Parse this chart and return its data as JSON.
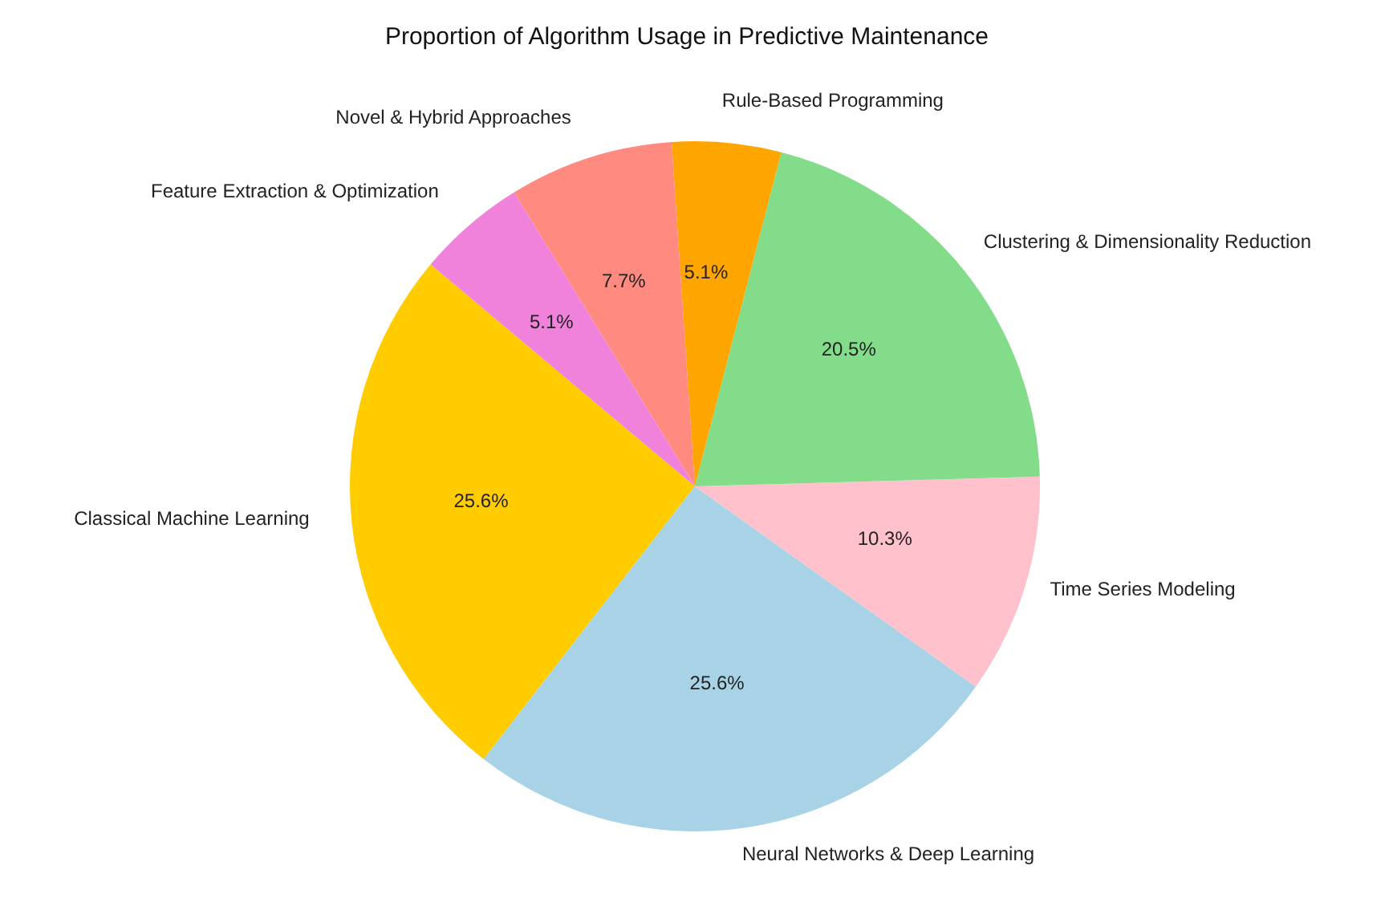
{
  "chart_data": {
    "type": "pie",
    "title": "Proportion of Algorithm Usage in Predictive Maintenance",
    "categories": [
      "Classical Machine Learning",
      "Neural Networks & Deep Learning",
      "Time Series Modeling",
      "Clustering & Dimensionality Reduction",
      "Rule-Based Programming",
      "Novel & Hybrid Approaches",
      "Feature Extraction & Optimization"
    ],
    "values": [
      25.6,
      25.6,
      10.3,
      20.5,
      5.1,
      7.7,
      5.1
    ],
    "value_labels": [
      "25.6%",
      "25.6%",
      "10.3%",
      "20.5%",
      "5.1%",
      "7.7%",
      "5.1%"
    ],
    "colors": [
      "#ffcc00",
      "#a8d3e6",
      "#ffc1cb",
      "#82dc8a",
      "#ffa500",
      "#ff8a80",
      "#f082dc"
    ],
    "legend": false
  }
}
